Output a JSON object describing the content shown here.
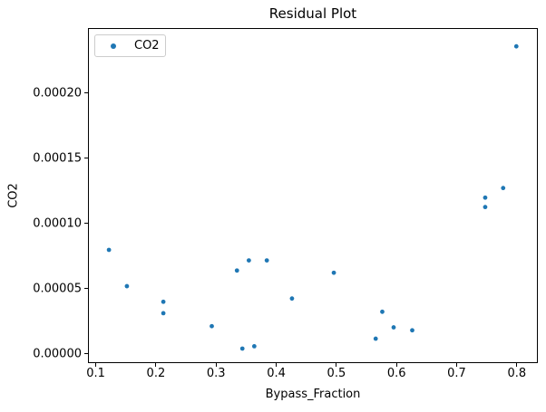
{
  "figure": {
    "background": "#ffffff",
    "spine_color": "#000000"
  },
  "chart_data": {
    "type": "scatter",
    "title": "Residual Plot",
    "xlabel": "Bypass_Fraction",
    "ylabel": "CO2",
    "grid": false,
    "legend_position": "upper left",
    "xlim": [
      0.087,
      0.835
    ],
    "ylim": [
      -7.2e-06,
      0.0002498
    ],
    "xticks": [
      "0.1",
      "0.2",
      "0.3",
      "0.4",
      "0.5",
      "0.6",
      "0.7",
      "0.8"
    ],
    "yticks": [
      "0.00000",
      "0.00005",
      "0.00010",
      "0.00015",
      "0.00020"
    ],
    "series": [
      {
        "name": "CO2",
        "color": "#1f77b4",
        "marker": "circle",
        "points": [
          [
            0.12,
            7.94e-05
          ],
          [
            0.15,
            5.14e-05
          ],
          [
            0.211,
            3.94e-05
          ],
          [
            0.211,
            3.06e-05
          ],
          [
            0.292,
            2.06e-05
          ],
          [
            0.334,
            6.35e-05
          ],
          [
            0.343,
            3.3e-06
          ],
          [
            0.354,
            7.13e-05
          ],
          [
            0.363,
            5.1e-06
          ],
          [
            0.384,
            7.13e-05
          ],
          [
            0.426,
            4.19e-05
          ],
          [
            0.496,
            6.18e-05
          ],
          [
            0.566,
            1.09e-05
          ],
          [
            0.577,
            3.17e-05
          ],
          [
            0.596,
            1.97e-05
          ],
          [
            0.627,
            1.74e-05
          ],
          [
            0.749,
            0.0001197
          ],
          [
            0.749,
            0.0001125
          ],
          [
            0.779,
            0.0001271
          ],
          [
            0.801,
            0.0002364
          ]
        ]
      }
    ]
  },
  "legend": {
    "entries": [
      {
        "label": "CO2",
        "marker_color": "#1f77b4",
        "marker_icon": "dot-icon"
      }
    ]
  }
}
